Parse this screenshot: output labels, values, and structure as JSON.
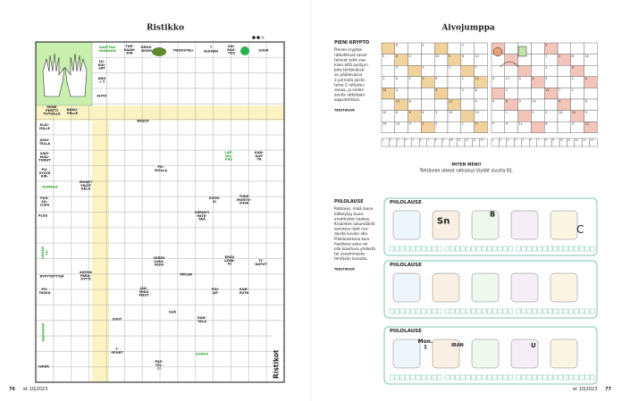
{
  "left_page": {
    "title": "Ristikko",
    "brand": "Ristikot",
    "page_number": "76",
    "issue": "et 10|2023",
    "crossword": {
      "clues": [
        "SAATTAA\nVAARAAN",
        "TUR-\nKAAN-\nKIN",
        "ORGA-\nNISMI",
        "TIEDUSTELI",
        "7\nALKAEN",
        "SAI-\nRAS-\nTUS",
        "OSUA",
        "LU-\nKUI-\nSAT",
        "ANU\n+ T",
        "EHTO",
        "MONI\nPERTTI\nTUTUILLE",
        "NAKU-\nPELLE",
        "BASSO",
        "ELÄI-\nMILLE",
        "ASUI-\nTELLA",
        "VAM-\nMAU-\nTUNUT",
        "PU-\nSYSTÄ\nKIR-",
        "KUMARA",
        "MONET\nYRJÖT\nKELA",
        "PUS-\nSIL-\nLISIA",
        "PLUS",
        "VÄHÄN\nTU",
        "RYPYTETTYJÄ",
        "PO-\nTASKA",
        "BERGMAN",
        "ISKEÄ",
        "LAP-\nSEL-\nKAS",
        "KAN-\nNAT-\nTA",
        "PO-\nMOLLA",
        "VUOK-\nSI",
        "TUKE\nMURTO-\nVIIVA",
        "VERINTI\nMITE-\nTÄÄ",
        "ERÄS\nLENK-\nKI",
        "TI-\nNATUT",
        "VERES\nILMA-\nVEIVI",
        "ASEMA\nPARA-\nSYTTI",
        "TÄYSIN",
        "POI-\nJAT",
        "KUR-\nKUTA",
        "JÄÄ-\nMIKÄ\nWEST",
        "ISIÄ",
        "RAN-\nTALA",
        "SIVIT",
        "7-\nSPORT",
        "SOKKA",
        "PAS-\nTEL-\nLI"
      ]
    }
  },
  "right_page": {
    "title": "Aivojumppa",
    "page_number": "77",
    "issue": "et 10|2023",
    "krypto": {
      "heading": "PIENI KRYPTO",
      "instructions": [
        "Pienen krypton",
        "ratkottavat sanat",
        "tulevat sekä vaa-",
        "kaan että pystyyn.",
        "Joka tehtävässä",
        "on päällevassa",
        "3 piirrosta joista",
        "tulee 2 ratkaisu-",
        "sanaa, ja niiden",
        "avulla ratkotaan",
        "lopputehtävä."
      ],
      "credit": "TEKSTIKUVA",
      "grid1": [
        [
          null,
          8,
          null,
          3,
          null,
          null,
          2,
          null
        ],
        [
          3,
          8,
          2,
          null,
          10,
          5,
          6,
          12
        ],
        [
          null,
          5,
          null,
          3,
          null,
          1,
          null,
          7
        ],
        [
          1,
          6,
          2,
          3,
          8,
          null,
          1,
          12
        ],
        [
          13,
          4,
          null,
          null,
          4,
          null,
          2,
          8
        ],
        [
          null,
          13,
          8,
          null,
          null,
          11,
          null,
          4
        ],
        [
          12,
          6,
          9,
          4,
          3,
          12,
          null,
          13
        ],
        [
          14,
          13,
          4,
          1,
          2,
          null,
          1,
          5
        ]
      ],
      "grid2": [
        [
          null,
          null,
          null,
          null,
          3,
          null,
          null,
          null
        ],
        [
          null,
          null,
          null,
          null,
          7,
          2,
          6,
          10
        ],
        [
          null,
          null,
          null,
          null,
          1,
          null,
          9,
          null
        ],
        [
          5,
          11,
          4,
          8,
          3,
          null,
          2,
          6
        ],
        [
          null,
          2,
          null,
          null,
          12,
          7,
          1,
          null
        ],
        [
          9,
          6,
          3,
          13,
          null,
          4,
          null,
          8
        ],
        [
          null,
          1,
          null,
          5,
          2,
          14,
          10,
          3
        ],
        [
          7,
          4,
          11,
          null,
          6,
          null,
          3,
          12
        ]
      ],
      "key1": [
        1,
        2,
        3,
        4,
        5,
        6,
        7,
        8,
        9,
        10,
        11,
        12,
        13,
        14
      ],
      "key2": [
        1,
        2,
        3,
        4,
        5,
        6,
        7,
        8,
        9,
        10,
        11,
        12,
        13,
        14
      ]
    },
    "results": {
      "heading": "MITEN MENI?",
      "text": "Tehtävien oikeat ratkaisut löydät sivulta 81."
    },
    "piilolause": {
      "heading": "PIILOLAUSE",
      "instructions": [
        "Ratkaise, mikä lause",
        "kätkeytyy kuva-",
        "arvoitusten taakse.",
        "Kirjainten lukumäärät",
        "sanoissa näet ruu-",
        "duista kuvien alla.",
        "Piilolauseessa kuin",
        "haettava sana voi",
        "olla koostuva yhdestä",
        "tai useammasta",
        "tehtävän kuvasta."
      ],
      "credit": "TEKSTIKUVA",
      "box_titles": [
        "PIILOLAUSE",
        "PIILOLAUSE",
        "PIILOLAUSE"
      ],
      "rebus_texts": [
        "Sn",
        "IRAN",
        "Mon.\n1",
        "B",
        "C",
        "U"
      ]
    }
  }
}
